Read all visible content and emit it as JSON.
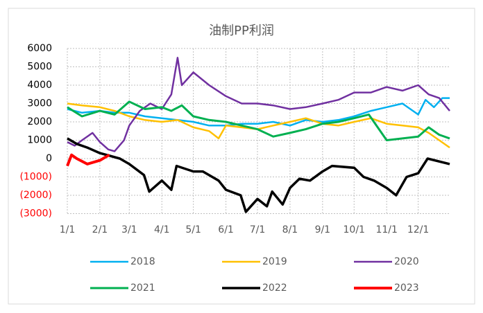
{
  "chart_data": {
    "type": "line",
    "title": "油制PP利润",
    "xlim": [
      1,
      365
    ],
    "xticks": [
      {
        "value": 1,
        "label": "1/1"
      },
      {
        "value": 32,
        "label": "2/1"
      },
      {
        "value": 60,
        "label": "3/1"
      },
      {
        "value": 91,
        "label": "4/1"
      },
      {
        "value": 121,
        "label": "5/1"
      },
      {
        "value": 152,
        "label": "6/1"
      },
      {
        "value": 182,
        "label": "7/1"
      },
      {
        "value": 213,
        "label": "8/1"
      },
      {
        "value": 244,
        "label": "9/1"
      },
      {
        "value": 274,
        "label": "10/1"
      },
      {
        "value": 305,
        "label": "11/1"
      },
      {
        "value": 335,
        "label": "12/1"
      }
    ],
    "ylim": [
      -3000,
      6000
    ],
    "yticks": [
      6000,
      5000,
      4000,
      3000,
      2000,
      1000,
      0,
      {
        "value": -1000,
        "label": "(1000)"
      },
      {
        "value": -2000,
        "label": "(2000)"
      },
      {
        "value": -3000,
        "label": "(3000)"
      }
    ],
    "negative_tick_color": "#ff0000",
    "grid": true,
    "legend": "bottom",
    "series": [
      {
        "name": "2018",
        "color": "#00b0f0",
        "width": 2.5,
        "x": [
          1,
          15,
          32,
          46,
          60,
          75,
          91,
          106,
          121,
          136,
          152,
          167,
          182,
          197,
          213,
          228,
          244,
          259,
          274,
          290,
          305,
          320,
          335,
          342,
          350,
          358,
          365
        ],
        "values": [
          2700,
          2500,
          2600,
          2500,
          2500,
          2300,
          2200,
          2100,
          2000,
          1800,
          1800,
          1900,
          1900,
          2000,
          1800,
          2100,
          2000,
          2100,
          2300,
          2600,
          2800,
          3000,
          2400,
          3200,
          2800,
          3300,
          3300
        ]
      },
      {
        "name": "2019",
        "color": "#ffc000",
        "width": 2.5,
        "x": [
          1,
          15,
          32,
          46,
          60,
          75,
          91,
          106,
          121,
          136,
          145,
          152,
          167,
          182,
          197,
          213,
          228,
          244,
          259,
          274,
          290,
          305,
          320,
          335,
          345,
          355,
          365
        ],
        "values": [
          3000,
          2900,
          2800,
          2600,
          2300,
          2100,
          2000,
          2100,
          1700,
          1500,
          1100,
          1800,
          1700,
          1600,
          1800,
          2000,
          2200,
          1900,
          1800,
          2000,
          2200,
          1900,
          1800,
          1700,
          1400,
          1000,
          600
        ]
      },
      {
        "name": "2020",
        "color": "#7030a0",
        "width": 2.5,
        "x": [
          1,
          8,
          15,
          25,
          32,
          40,
          46,
          55,
          60,
          70,
          80,
          91,
          100,
          106,
          110,
          121,
          136,
          152,
          167,
          182,
          197,
          213,
          228,
          244,
          259,
          274,
          290,
          305,
          320,
          335,
          345,
          355,
          365
        ],
        "values": [
          900,
          700,
          1000,
          1400,
          900,
          500,
          400,
          1000,
          1800,
          2600,
          3000,
          2700,
          3500,
          5500,
          4000,
          4700,
          4000,
          3400,
          3000,
          3000,
          2900,
          2700,
          2800,
          3000,
          3200,
          3600,
          3600,
          3900,
          3700,
          4000,
          3500,
          3300,
          2600
        ]
      },
      {
        "name": "2021",
        "color": "#00b050",
        "width": 3,
        "x": [
          1,
          15,
          32,
          46,
          60,
          75,
          91,
          100,
          110,
          121,
          136,
          152,
          167,
          182,
          197,
          213,
          228,
          244,
          259,
          274,
          288,
          305,
          320,
          335,
          345,
          355,
          365
        ],
        "values": [
          2800,
          2300,
          2600,
          2400,
          3100,
          2700,
          2800,
          2600,
          2900,
          2300,
          2100,
          2000,
          1800,
          1600,
          1200,
          1400,
          1600,
          1900,
          2000,
          2200,
          2400,
          1000,
          1100,
          1200,
          1700,
          1300,
          1100
        ]
      },
      {
        "name": "2022",
        "color": "#000000",
        "width": 3.5,
        "x": [
          1,
          10,
          20,
          32,
          51,
          60,
          74,
          79,
          91,
          100,
          105,
          121,
          130,
          145,
          152,
          166,
          171,
          182,
          191,
          196,
          206,
          213,
          222,
          232,
          244,
          253,
          274,
          283,
          293,
          305,
          314,
          324,
          335,
          344,
          365
        ],
        "values": [
          1100,
          800,
          600,
          300,
          0,
          -300,
          -900,
          -1800,
          -1200,
          -1700,
          -400,
          -700,
          -700,
          -1200,
          -1700,
          -2000,
          -2900,
          -2200,
          -2600,
          -1800,
          -2500,
          -1600,
          -1100,
          -1200,
          -700,
          -400,
          -500,
          -1000,
          -1200,
          -1600,
          -2000,
          -1000,
          -800,
          0,
          -300
        ]
      },
      {
        "name": "2023",
        "color": "#ff0000",
        "width": 4,
        "x": [
          1,
          5,
          10,
          20,
          32,
          41
        ],
        "values": [
          -400,
          200,
          0,
          -300,
          -100,
          200
        ]
      }
    ]
  }
}
